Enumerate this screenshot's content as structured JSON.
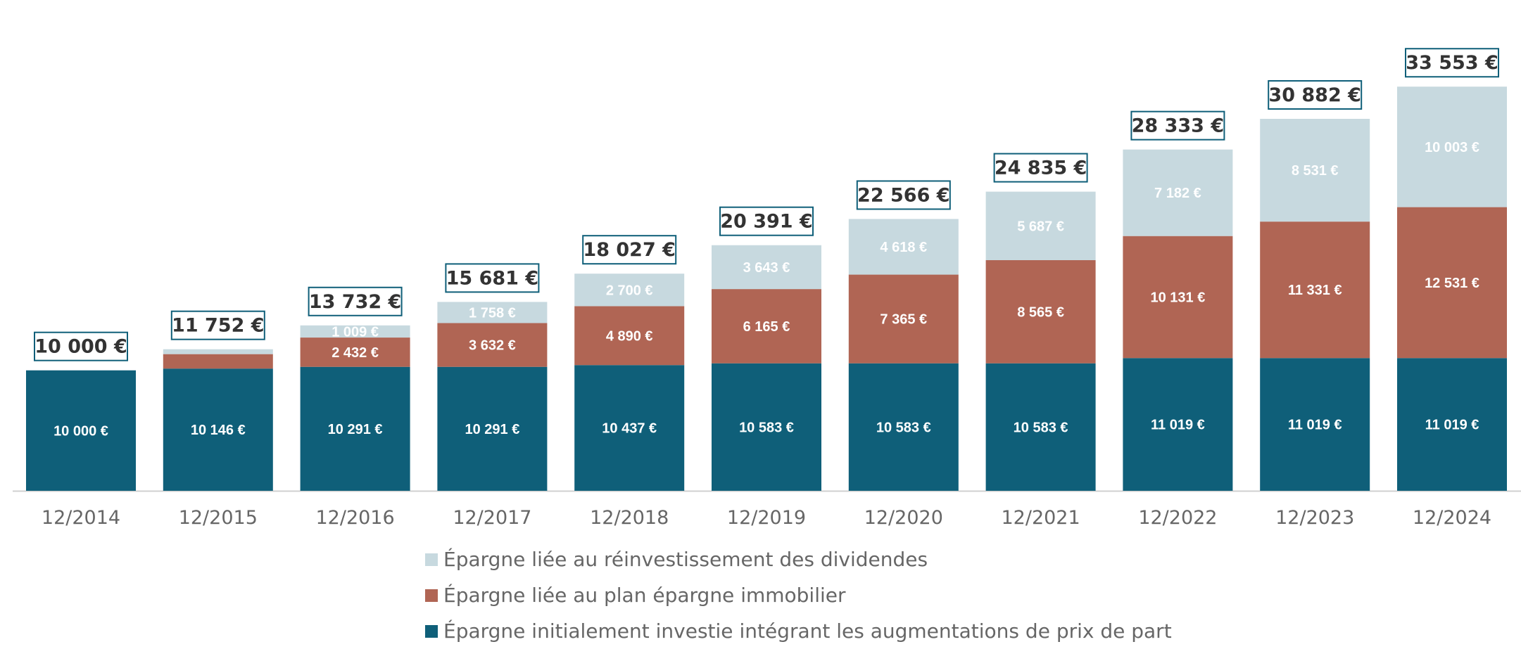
{
  "chart_data": {
    "type": "bar",
    "stacked": true,
    "categories": [
      "12/2014",
      "12/2015",
      "12/2016",
      "12/2017",
      "12/2018",
      "12/2019",
      "12/2020",
      "12/2021",
      "12/2022",
      "12/2023",
      "12/2024"
    ],
    "series": [
      {
        "name": "Épargne initialement investie intégrant les augmentations de prix de part",
        "color": "#0f5f79",
        "values": [
          10000,
          10146,
          10291,
          10291,
          10437,
          10583,
          10583,
          10583,
          11019,
          11019,
          11019
        ],
        "labels": [
          "10 000 €",
          "10 146 €",
          "10 291 €",
          "10 291 €",
          "10 437 €",
          "10 583 €",
          "10 583 €",
          "10 583 €",
          "11 019 €",
          "11 019 €",
          "11 019 €"
        ]
      },
      {
        "name": "Épargne liée au plan épargne immobilier",
        "color": "#b06554",
        "values": [
          0,
          1200,
          2432,
          3632,
          4890,
          6165,
          7365,
          8565,
          10131,
          11331,
          12531
        ],
        "labels": [
          "",
          "",
          "2 432 €",
          "3 632 €",
          "4 890 €",
          "6 165 €",
          "7 365 €",
          "8 565 €",
          "10 131 €",
          "11 331 €",
          "12 531 €"
        ]
      },
      {
        "name": "Épargne liée au réinvestissement des dividendes",
        "color": "#c7d9df",
        "values": [
          0,
          406,
          1009,
          1758,
          2700,
          3643,
          4618,
          5687,
          7182,
          8531,
          10003
        ],
        "labels": [
          "",
          "",
          "1 009 €",
          "1 758 €",
          "2 700 €",
          "3 643 €",
          "4 618 €",
          "5 687 €",
          "7 182 €",
          "8 531 €",
          "10 003 €"
        ]
      }
    ],
    "totals": [
      10000,
      11752,
      13732,
      15681,
      18027,
      20391,
      22566,
      24835,
      28333,
      30882,
      33553
    ],
    "total_labels": [
      "10 000 €",
      "11 752 €",
      "13 732 €",
      "15 681 €",
      "18 027 €",
      "20 391 €",
      "22 566 €",
      "24 835 €",
      "28 333 €",
      "30 882 €",
      "33 553 €"
    ],
    "legend_order": [
      2,
      1,
      0
    ],
    "legend_position": "bottom",
    "grid": false,
    "ylim": [
      0,
      36000
    ]
  }
}
